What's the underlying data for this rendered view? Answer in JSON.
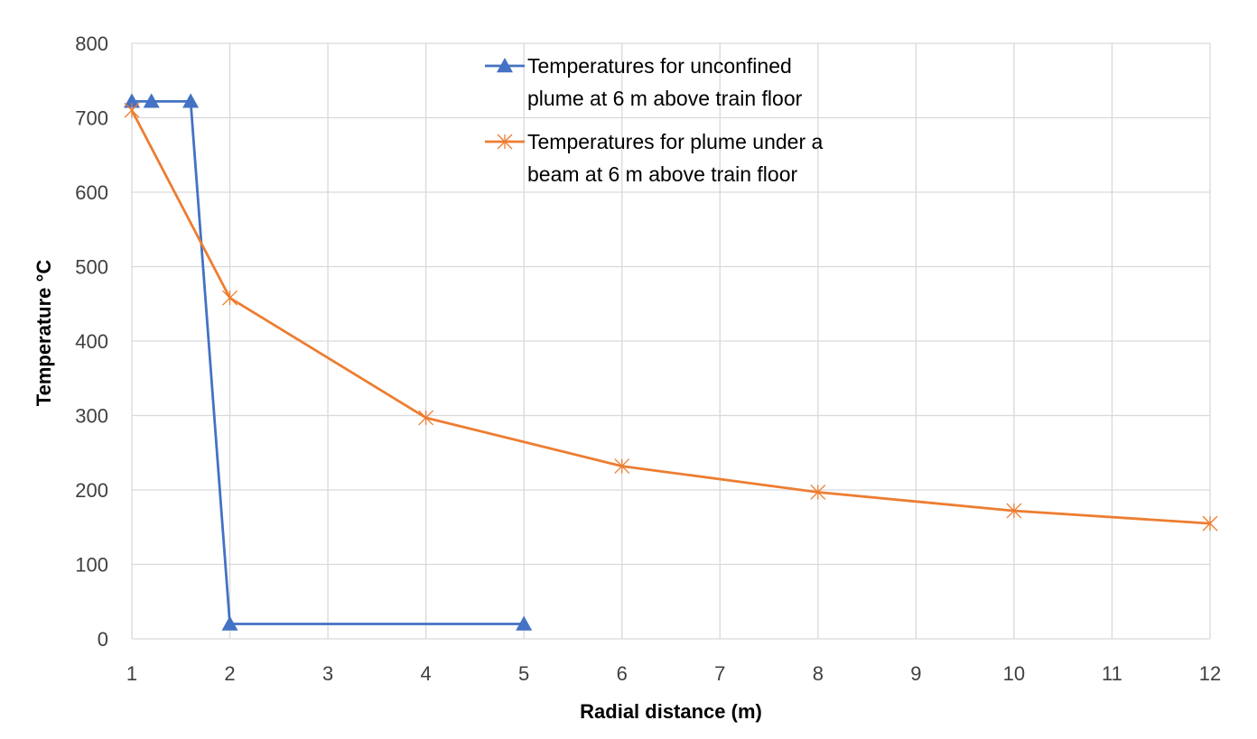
{
  "chart_data": {
    "type": "line",
    "title": "",
    "xlabel": "Radial distance (m)",
    "ylabel": "Temperature °C",
    "x_categories": [
      "1",
      "2",
      "3",
      "4",
      "5",
      "6",
      "7",
      "8",
      "9",
      "10",
      "11",
      "12"
    ],
    "ylim": [
      0,
      800
    ],
    "yticks": [
      0,
      100,
      200,
      300,
      400,
      500,
      600,
      700,
      800
    ],
    "grid": true,
    "legend_position": "top-center",
    "series": [
      {
        "name": "Temperatures for unconfined plume at 6 m above train floor",
        "legend_lines": [
          "Temperatures for unconfined",
          "plume at 6 m above train floor"
        ],
        "color": "#4472c4",
        "marker": "triangle",
        "x": [
          1,
          1.2,
          1.6,
          2,
          5
        ],
        "y": [
          722,
          722,
          722,
          20,
          20
        ]
      },
      {
        "name": "Temperatures for plume under a beam at 6 m above train floor",
        "legend_lines": [
          "Temperatures for plume under a",
          "beam at 6 m above train floor"
        ],
        "color": "#ed7d31",
        "marker": "asterisk",
        "x": [
          1,
          2,
          4,
          6,
          8,
          10,
          12
        ],
        "y": [
          710,
          458,
          297,
          232,
          197,
          172,
          155
        ]
      }
    ]
  }
}
